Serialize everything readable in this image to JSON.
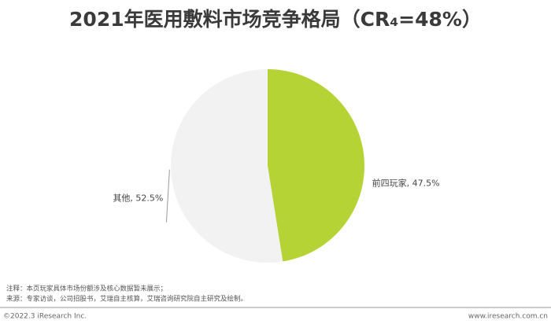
{
  "chart_data": {
    "type": "pie",
    "title": "2021年医用敷料市场竞争格局（CR₄=48%）",
    "values": [
      47.5,
      52.5
    ],
    "value_labels": [
      "前四玩家, 47.5%",
      "其他, 52.5%"
    ],
    "colors": [
      "#b5d334",
      "#f2f2f2"
    ],
    "start_angle": 0,
    "direction": "clockwise"
  },
  "notes": [
    "注释：本页玩家具体市场份额涉及核心数据暂未展示；",
    "来源：专家访谈，公司招股书，艾瑞自主核算，艾瑞咨询研究院自主研究及绘制。"
  ],
  "footer": {
    "left": "©2022.3 iResearch Inc.",
    "right": "www.iresearch.com.cn"
  }
}
